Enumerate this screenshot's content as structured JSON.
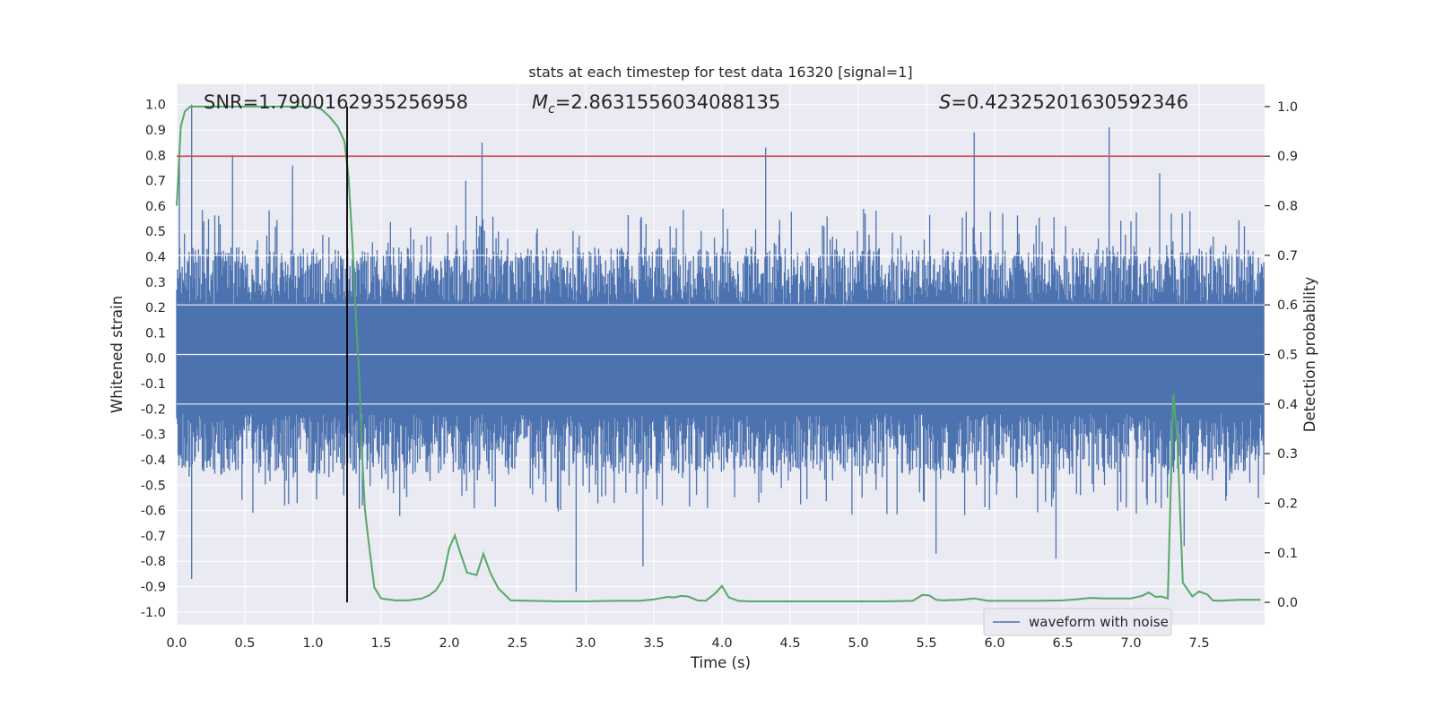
{
  "chart_data": {
    "type": "line",
    "title": "stats at each timestep for test data 16320 [signal=1]",
    "xlabel": "Time (s)",
    "ylabel": "Whitened strain",
    "y2label": "Detection probability",
    "xlim": [
      0.0,
      7.98
    ],
    "ylim": [
      -1.05,
      1.08
    ],
    "y2lim": [
      -0.045,
      1.045
    ],
    "xticks": [
      "0.0",
      "0.5",
      "1.0",
      "1.5",
      "2.0",
      "2.5",
      "3.0",
      "3.5",
      "4.0",
      "4.5",
      "5.0",
      "5.5",
      "6.0",
      "6.5",
      "7.0",
      "7.5"
    ],
    "yticks": [
      "1.0",
      "0.9",
      "0.8",
      "0.7",
      "0.6",
      "0.5",
      "0.4",
      "0.3",
      "0.2",
      "0.1",
      "0.0",
      "-0.1",
      "-0.2",
      "-0.3",
      "-0.4",
      "-0.5",
      "-0.6",
      "-0.7",
      "-0.8",
      "-0.9",
      "-1.0"
    ],
    "y2ticks": [
      "1.0",
      "0.9",
      "0.8",
      "0.7",
      "0.6",
      "0.5",
      "0.4",
      "0.3",
      "0.2",
      "0.1",
      "0.0"
    ],
    "grid": true,
    "legend_position": "lower-right",
    "annotations": {
      "snr": "SNR=1.7900162935256958",
      "mc_symbol": "M",
      "mc_sub": "c",
      "mc_value": "=2.8631556034088135",
      "s_symbol": "S",
      "s_value": "=0.42325201630592346"
    },
    "threshold_y2": 0.9,
    "event_time": 1.25,
    "series": [
      {
        "name": "waveform with noise",
        "axis": "left",
        "color": "#4c72b0",
        "sample_rate": 2048,
        "duration": 7.98,
        "typical_positive_peak": 0.38,
        "typical_negative_peak": -0.4,
        "peaks": [
          {
            "t": 0.02,
            "v": 0.81
          },
          {
            "t": 0.11,
            "v": 1.0
          },
          {
            "t": 0.11,
            "v": -0.87
          },
          {
            "t": 0.41,
            "v": 0.8
          },
          {
            "t": 0.85,
            "v": 0.76
          },
          {
            "t": 2.24,
            "v": 0.85
          },
          {
            "t": 2.93,
            "v": -0.92
          },
          {
            "t": 3.42,
            "v": -0.82
          },
          {
            "t": 4.32,
            "v": 0.83
          },
          {
            "t": 5.85,
            "v": 0.89
          },
          {
            "t": 6.84,
            "v": 0.91
          },
          {
            "t": 6.45,
            "v": -0.79
          },
          {
            "t": 5.57,
            "v": -0.77
          },
          {
            "t": 1.25,
            "v": 0.78
          },
          {
            "t": 7.39,
            "v": -0.74
          },
          {
            "t": 2.12,
            "v": 0.7
          },
          {
            "t": 7.21,
            "v": 0.73
          }
        ]
      },
      {
        "name": "",
        "axis": "right",
        "color": "#55a868",
        "x": [
          0.0,
          0.03,
          0.06,
          0.1,
          0.2,
          0.4,
          0.6,
          0.8,
          1.0,
          1.06,
          1.12,
          1.18,
          1.23,
          1.26,
          1.29,
          1.31,
          1.34,
          1.36,
          1.38,
          1.4,
          1.45,
          1.5,
          1.6,
          1.7,
          1.8,
          1.85,
          1.9,
          1.95,
          2.0,
          2.04,
          2.08,
          2.13,
          2.2,
          2.25,
          2.3,
          2.36,
          2.45,
          2.6,
          2.8,
          3.0,
          3.2,
          3.4,
          3.5,
          3.6,
          3.65,
          3.7,
          3.75,
          3.82,
          3.88,
          3.95,
          4.0,
          4.05,
          4.12,
          4.2,
          4.4,
          4.6,
          4.8,
          5.0,
          5.2,
          5.4,
          5.47,
          5.52,
          5.57,
          5.62,
          5.75,
          5.85,
          5.95,
          6.1,
          6.3,
          6.5,
          6.6,
          6.7,
          6.8,
          6.9,
          7.0,
          7.08,
          7.13,
          7.18,
          7.22,
          7.27,
          7.31,
          7.34,
          7.38,
          7.45,
          7.5,
          7.56,
          7.6,
          7.65,
          7.7,
          7.8,
          7.95
        ],
        "y": [
          0.8,
          0.96,
          0.99,
          1.0,
          1.0,
          1.0,
          1.0,
          1.0,
          1.0,
          0.995,
          0.98,
          0.96,
          0.93,
          0.86,
          0.72,
          0.6,
          0.45,
          0.3,
          0.19,
          0.14,
          0.03,
          0.008,
          0.004,
          0.004,
          0.008,
          0.014,
          0.024,
          0.045,
          0.11,
          0.135,
          0.1,
          0.06,
          0.055,
          0.098,
          0.06,
          0.028,
          0.004,
          0.003,
          0.002,
          0.002,
          0.003,
          0.003,
          0.006,
          0.011,
          0.01,
          0.013,
          0.012,
          0.004,
          0.003,
          0.018,
          0.033,
          0.01,
          0.003,
          0.002,
          0.002,
          0.002,
          0.002,
          0.002,
          0.002,
          0.003,
          0.015,
          0.014,
          0.005,
          0.004,
          0.005,
          0.008,
          0.003,
          0.003,
          0.003,
          0.004,
          0.006,
          0.009,
          0.008,
          0.008,
          0.008,
          0.013,
          0.02,
          0.011,
          0.012,
          0.008,
          0.42,
          0.33,
          0.04,
          0.012,
          0.022,
          0.016,
          0.004,
          0.003,
          0.004,
          0.005,
          0.005
        ]
      }
    ]
  }
}
